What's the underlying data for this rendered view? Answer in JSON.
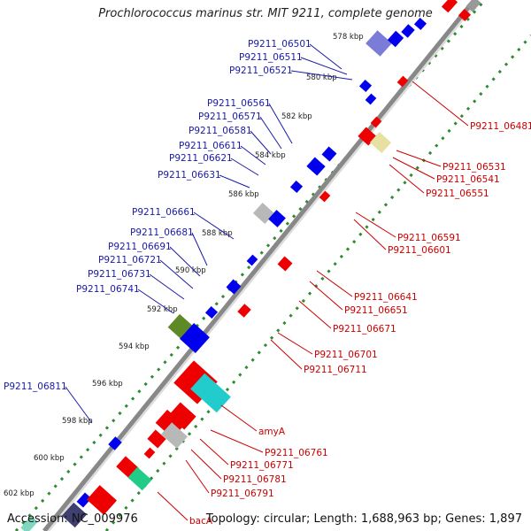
{
  "title": "Prochlorococcus marinus str. MIT 9211, complete genome",
  "footer": {
    "accession": "Accession: NC_009976",
    "summary": "Topology: circular; Length: 1,688,963 bp; Genes: 1,897"
  },
  "colors": {
    "forward_label": "#1a1aa8",
    "reverse_label": "#cc0000",
    "backbone": "#888888",
    "tick_dots": "#2e8b2e",
    "forward_gene": "#0000ee",
    "reverse_gene": "#ee0000"
  },
  "kbp_ticks": [
    "578 kbp",
    "580 kbp",
    "582 kbp",
    "584 kbp",
    "586 kbp",
    "588 kbp",
    "590 kbp",
    "592 kbp",
    "594 kbp",
    "596 kbp",
    "598 kbp",
    "600 kbp",
    "602 kbp"
  ],
  "left_labels": [
    "P9211_06501",
    "P9211_06511",
    "P9211_06521",
    "P9211_06561",
    "P9211_06571",
    "P9211_06581",
    "P9211_06611",
    "P9211_06621",
    "P9211_06631",
    "P9211_06661",
    "P9211_06681",
    "P9211_06691",
    "P9211_06721",
    "P9211_06731",
    "P9211_06741",
    "P9211_06811"
  ],
  "right_labels": [
    "P9211_06481",
    "P9211_06531",
    "P9211_06541",
    "P9211_06551",
    "P9211_06591",
    "P9211_06601",
    "P9211_06641",
    "P9211_06651",
    "P9211_06671",
    "P9211_06701",
    "P9211_06711",
    "amyA",
    "P9211_06761",
    "P9211_06771",
    "P9211_06781",
    "P9211_06791",
    "bacA"
  ]
}
